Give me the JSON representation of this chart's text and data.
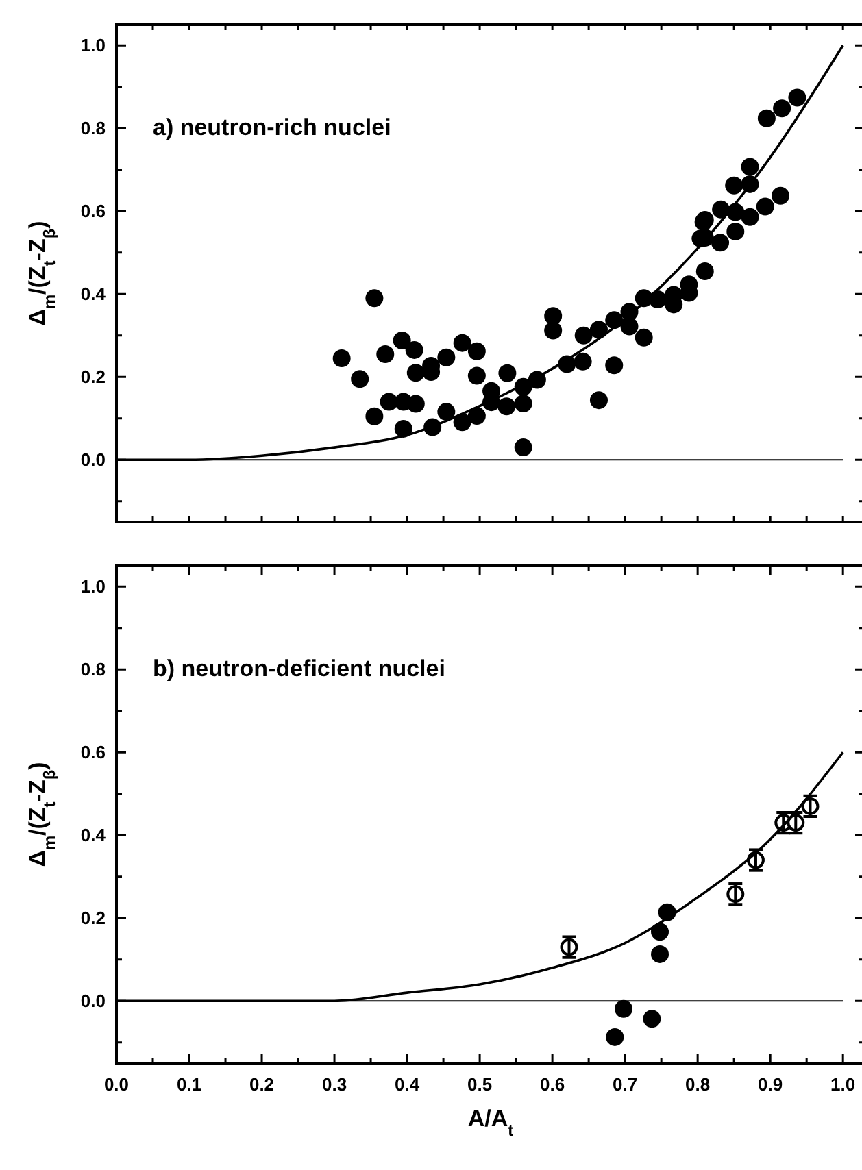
{
  "chart_data": [
    {
      "type": "scatter",
      "title": "a) neutron-rich nuclei",
      "ylabel": "Δ$_{m}$/(Z$_{t}$-Z$_{β}$)",
      "tick_labels": "y",
      "xlim": [
        0,
        1.03
      ],
      "ylim": [
        -0.15,
        1.05
      ],
      "xticks": [
        {
          "value": 0,
          "label": null
        },
        {
          "value": 0.05,
          "label": null
        },
        {
          "value": 0.1,
          "label": null
        },
        {
          "value": 0.15,
          "label": null
        },
        {
          "value": 0.2,
          "label": null
        },
        {
          "value": 0.25,
          "label": null
        },
        {
          "value": 0.3,
          "label": null
        },
        {
          "value": 0.35,
          "label": null
        },
        {
          "value": 0.4,
          "label": null
        },
        {
          "value": 0.45,
          "label": null
        },
        {
          "value": 0.5,
          "label": null
        },
        {
          "value": 0.55,
          "label": null
        },
        {
          "value": 0.6,
          "label": null
        },
        {
          "value": 0.65,
          "label": null
        },
        {
          "value": 0.7,
          "label": null
        },
        {
          "value": 0.75,
          "label": null
        },
        {
          "value": 0.8,
          "label": null
        },
        {
          "value": 0.85,
          "label": null
        },
        {
          "value": 0.9,
          "label": null
        },
        {
          "value": 0.95,
          "label": null
        },
        {
          "value": 1,
          "label": null
        }
      ],
      "yticks": [
        {
          "value": -0.1,
          "label": null
        },
        {
          "value": 0,
          "label": "0.0"
        },
        {
          "value": 0.1,
          "label": null
        },
        {
          "value": 0.2,
          "label": "0.2"
        },
        {
          "value": 0.3,
          "label": null
        },
        {
          "value": 0.4,
          "label": "0.4"
        },
        {
          "value": 0.5,
          "label": null
        },
        {
          "value": 0.6,
          "label": "0.6"
        },
        {
          "value": 0.7,
          "label": null
        },
        {
          "value": 0.8,
          "label": "0.8"
        },
        {
          "value": 0.9,
          "label": null
        },
        {
          "value": 1,
          "label": "1.0"
        }
      ],
      "ref_lines": [
        {
          "axis": "y",
          "value": 0,
          "color": "#000000"
        }
      ],
      "series": [
        {
          "marker": "circle",
          "color": "#000000",
          "x": [
            0.31,
            0.335,
            0.355,
            0.355,
            0.37,
            0.375,
            0.393,
            0.395,
            0.395,
            0.41,
            0.412,
            0.412,
            0.433,
            0.433,
            0.435,
            0.454,
            0.454,
            0.476,
            0.476,
            0.496,
            0.496,
            0.496,
            0.516,
            0.516,
            0.537,
            0.538,
            0.56,
            0.56,
            0.56,
            0.579,
            0.601,
            0.601,
            0.62,
            0.642,
            0.643,
            0.664,
            0.664,
            0.685,
            0.685,
            0.706,
            0.706,
            0.726,
            0.726,
            0.745,
            0.767,
            0.767,
            0.788,
            0.788,
            0.804,
            0.808,
            0.81,
            0.81,
            0.81,
            0.831,
            0.832,
            0.85,
            0.852,
            0.852,
            0.872,
            0.872,
            0.872,
            0.893,
            0.895,
            0.914,
            0.916,
            0.937
          ],
          "values": [
            0.245,
            0.195,
            0.39,
            0.105,
            0.255,
            0.14,
            0.288,
            0.14,
            0.075,
            0.265,
            0.21,
            0.135,
            0.227,
            0.212,
            0.079,
            0.247,
            0.116,
            0.282,
            0.091,
            0.262,
            0.203,
            0.106,
            0.166,
            0.139,
            0.129,
            0.209,
            0.176,
            0.136,
            0.03,
            0.193,
            0.347,
            0.312,
            0.231,
            0.237,
            0.3,
            0.314,
            0.144,
            0.337,
            0.228,
            0.357,
            0.322,
            0.39,
            0.295,
            0.387,
            0.398,
            0.375,
            0.423,
            0.403,
            0.534,
            0.574,
            0.455,
            0.536,
            0.579,
            0.524,
            0.604,
            0.662,
            0.598,
            0.551,
            0.707,
            0.665,
            0.586,
            0.611,
            0.824,
            0.637,
            0.848,
            0.874
          ]
        },
        {
          "type": "line",
          "line_style": "solid",
          "color": "#000000",
          "x": [
            0,
            0.1,
            0.2,
            0.3,
            0.4,
            0.5,
            0.6,
            0.7,
            0.8,
            0.9,
            1
          ],
          "values": [
            0,
            0,
            0.01,
            0.03,
            0.06,
            0.13,
            0.22,
            0.34,
            0.51,
            0.73,
            1.0
          ]
        }
      ]
    },
    {
      "type": "scatter",
      "title": "b) neutron-deficient nuclei",
      "xlabel": "A/A$_{t}$",
      "ylabel": "Δ$_{m}$/(Z$_{t}$-Z$_{β}$)",
      "xlim": [
        0,
        1.03
      ],
      "ylim": [
        -0.15,
        1.05
      ],
      "xticks": [
        {
          "value": 0,
          "label": "0.0"
        },
        {
          "value": 0.05,
          "label": null
        },
        {
          "value": 0.1,
          "label": "0.1"
        },
        {
          "value": 0.15,
          "label": null
        },
        {
          "value": 0.2,
          "label": "0.2"
        },
        {
          "value": 0.25,
          "label": null
        },
        {
          "value": 0.3,
          "label": "0.3"
        },
        {
          "value": 0.35,
          "label": null
        },
        {
          "value": 0.4,
          "label": "0.4"
        },
        {
          "value": 0.45,
          "label": null
        },
        {
          "value": 0.5,
          "label": "0.5"
        },
        {
          "value": 0.55,
          "label": null
        },
        {
          "value": 0.6,
          "label": "0.6"
        },
        {
          "value": 0.65,
          "label": null
        },
        {
          "value": 0.7,
          "label": "0.7"
        },
        {
          "value": 0.75,
          "label": null
        },
        {
          "value": 0.8,
          "label": "0.8"
        },
        {
          "value": 0.85,
          "label": null
        },
        {
          "value": 0.9,
          "label": "0.9"
        },
        {
          "value": 0.95,
          "label": null
        },
        {
          "value": 1,
          "label": "1.0"
        }
      ],
      "yticks": [
        {
          "value": -0.1,
          "label": null
        },
        {
          "value": 0,
          "label": "0.0"
        },
        {
          "value": 0.1,
          "label": null
        },
        {
          "value": 0.2,
          "label": "0.2"
        },
        {
          "value": 0.3,
          "label": null
        },
        {
          "value": 0.4,
          "label": "0.4"
        },
        {
          "value": 0.5,
          "label": null
        },
        {
          "value": 0.6,
          "label": "0.6"
        },
        {
          "value": 0.7,
          "label": null
        },
        {
          "value": 0.8,
          "label": "0.8"
        },
        {
          "value": 0.9,
          "label": null
        },
        {
          "value": 1,
          "label": "1.0"
        }
      ],
      "ref_lines": [
        {
          "axis": "y",
          "value": 0,
          "color": "#000000"
        }
      ],
      "series": [
        {
          "marker": "circle",
          "color": "#000000",
          "x": [
            0.686,
            0.698,
            0.737,
            0.748,
            0.748,
            0.758
          ],
          "values": [
            -0.087,
            -0.019,
            -0.043,
            0.167,
            0.113,
            0.214
          ]
        },
        {
          "marker": "circle",
          "color": "#ffffff",
          "x": [
            0.623,
            0.852,
            0.88,
            0.918,
            0.935,
            0.955
          ],
          "values": [
            0.13,
            0.258,
            0.34,
            0.43,
            0.43,
            0.47
          ],
          "errors": [
            0.025,
            0.025,
            0.025,
            0.025,
            0.025,
            0.025
          ]
        },
        {
          "type": "line",
          "line_style": "solid",
          "color": "#000000",
          "x": [
            0,
            0.1,
            0.2,
            0.3,
            0.4,
            0.5,
            0.6,
            0.7,
            0.8,
            0.9,
            1
          ],
          "values": [
            0,
            0,
            0,
            0,
            0.02,
            0.04,
            0.08,
            0.14,
            0.25,
            0.39,
            0.6
          ]
        }
      ]
    }
  ]
}
